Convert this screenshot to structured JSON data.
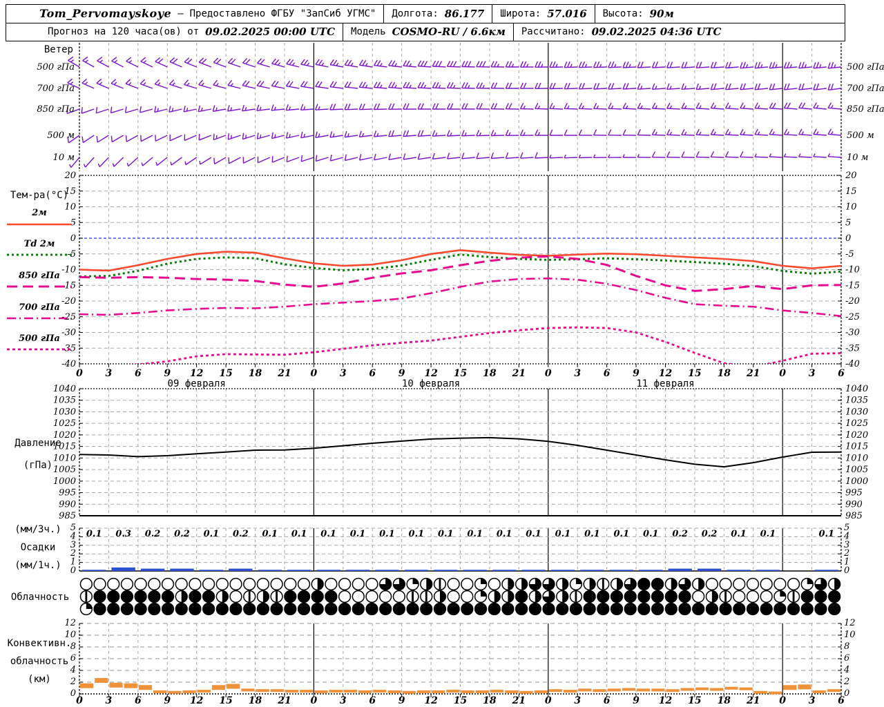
{
  "header": {
    "station": "Tom_Pervomayskoye",
    "dash": "–",
    "provider": "Предоставлено ФГБУ \"ЗапСиб УГМС\"",
    "lon_label": "Долгота:",
    "lon_value": "86.177",
    "lat_label": "Широта:",
    "lat_value": "57.016",
    "alt_label": "Высота:",
    "alt_value": "90м",
    "forecast_label": "Прогноз на 120 часа(ов) от",
    "forecast_time": "09.02.2025 00:00 UTC",
    "model_label": "Модель",
    "model_value": "COSMO-RU / 6.6км",
    "calc_label": "Рассчитано:",
    "calc_time": "09.02.2025 04:36 UTC"
  },
  "axis": {
    "hour_labels": [
      "0",
      "3",
      "6",
      "9",
      "12",
      "15",
      "18",
      "21",
      "0",
      "3",
      "6",
      "9",
      "12",
      "15",
      "18",
      "21",
      "0",
      "3",
      "6",
      "9",
      "12",
      "15",
      "18",
      "21",
      "0",
      "3",
      "6"
    ],
    "date_labels": [
      "09 февраля",
      "10 февраля",
      "11 февраля"
    ]
  },
  "colors": {
    "barb": "#7d10cc",
    "t2m": "#fb4a2e",
    "td2m": "#077c07",
    "magenta": "#e80a8e",
    "zero_line": "#2a2af0",
    "pressure": "#000000",
    "precip_bar": "#2d4fd2",
    "conv_bar": "#ef9239",
    "grid": "#a8a8a8"
  },
  "chart_data": [
    {
      "id": "wind",
      "type": "wind-barbs",
      "panel_label": "Ветер",
      "x_hours_step": 3,
      "levels": [
        {
          "name": "500 гПа",
          "dirs": [
            300,
            298,
            296,
            294,
            292,
            290,
            288,
            285,
            282,
            280,
            278,
            276,
            274,
            272,
            271,
            270,
            269,
            268,
            268,
            267,
            267,
            266,
            266,
            265,
            265,
            265,
            264
          ],
          "speeds": [
            18,
            18,
            18,
            20,
            20,
            22,
            22,
            25,
            25,
            25,
            28,
            28,
            30,
            30,
            30,
            28,
            28,
            25,
            25,
            25,
            22,
            22,
            22,
            25,
            25,
            25,
            25
          ]
        },
        {
          "name": "700 гПа",
          "dirs": [
            295,
            293,
            291,
            289,
            287,
            285,
            283,
            281,
            279,
            277,
            275,
            274,
            273,
            272,
            271,
            270,
            269,
            268,
            267,
            267,
            266,
            266,
            265,
            265,
            264,
            264,
            263
          ],
          "speeds": [
            15,
            15,
            15,
            18,
            18,
            18,
            20,
            20,
            22,
            22,
            25,
            25,
            25,
            25,
            25,
            22,
            22,
            20,
            20,
            20,
            18,
            18,
            20,
            20,
            22,
            22,
            22
          ]
        },
        {
          "name": "850 гПа",
          "dirs": [
            250,
            252,
            254,
            256,
            258,
            260,
            262,
            264,
            266,
            267,
            268,
            269,
            270,
            270,
            271,
            271,
            272,
            272,
            272,
            273,
            273,
            273,
            274,
            274,
            274,
            275,
            275
          ],
          "speeds": [
            12,
            12,
            12,
            15,
            15,
            15,
            18,
            18,
            18,
            20,
            20,
            22,
            22,
            22,
            20,
            20,
            18,
            18,
            15,
            15,
            15,
            18,
            18,
            18,
            20,
            20,
            18
          ]
        },
        {
          "name": "500 м",
          "dirs": [
            235,
            238,
            241,
            244,
            247,
            250,
            253,
            256,
            259,
            261,
            263,
            265,
            266,
            267,
            268,
            269,
            270,
            270,
            271,
            271,
            272,
            272,
            273,
            273,
            274,
            274,
            275
          ],
          "speeds": [
            10,
            10,
            12,
            12,
            12,
            15,
            15,
            15,
            18,
            18,
            18,
            20,
            20,
            18,
            18,
            15,
            15,
            12,
            12,
            12,
            15,
            15,
            15,
            15,
            15,
            15,
            15
          ]
        },
        {
          "name": "10 м",
          "dirs": [
            220,
            224,
            228,
            232,
            236,
            240,
            244,
            248,
            252,
            255,
            258,
            260,
            262,
            264,
            265,
            266,
            267,
            268,
            269,
            270,
            271,
            271,
            272,
            272,
            273,
            273,
            274
          ],
          "speeds": [
            5,
            5,
            8,
            8,
            8,
            10,
            10,
            10,
            10,
            12,
            12,
            12,
            12,
            12,
            10,
            10,
            10,
            8,
            8,
            8,
            10,
            10,
            10,
            10,
            8,
            8,
            8
          ]
        }
      ]
    },
    {
      "id": "temperature",
      "type": "line",
      "panel_label": "Тем-ра(°C)",
      "x_hours_step": 3,
      "ylim": [
        -40,
        20
      ],
      "ytick_step": 5,
      "zero_line": 0,
      "series": [
        {
          "name": "2м",
          "style": "solid",
          "color_key": "t2m",
          "values": [
            -10.0,
            -10.3,
            -8.6,
            -6.6,
            -5.0,
            -4.3,
            -4.6,
            -6.4,
            -8.0,
            -8.8,
            -8.4,
            -7.0,
            -5.0,
            -3.8,
            -4.6,
            -5.3,
            -5.6,
            -5.2,
            -4.9,
            -5.1,
            -5.6,
            -6.1,
            -6.6,
            -7.3,
            -8.8,
            -9.6,
            -8.8
          ]
        },
        {
          "name": "Td 2м",
          "style": "dotted",
          "color_key": "td2m",
          "values": [
            -12.2,
            -12.0,
            -10.4,
            -8.1,
            -6.6,
            -6.1,
            -6.4,
            -8.3,
            -9.5,
            -10.2,
            -9.8,
            -8.7,
            -6.9,
            -5.2,
            -6.0,
            -6.6,
            -6.9,
            -6.7,
            -6.4,
            -6.7,
            -7.1,
            -7.6,
            -8.1,
            -8.9,
            -10.4,
            -11.3,
            -10.6
          ]
        },
        {
          "name": "850 гПа",
          "style": "longdash",
          "color_key": "magenta",
          "values": [
            -12.4,
            -12.6,
            -12.4,
            -12.6,
            -13.0,
            -13.2,
            -13.6,
            -14.8,
            -15.5,
            -14.4,
            -12.6,
            -11.2,
            -10.2,
            -8.6,
            -7.2,
            -6.2,
            -5.8,
            -6.6,
            -8.5,
            -12.0,
            -15.0,
            -16.8,
            -16.2,
            -15.2,
            -16.2,
            -15.0,
            -14.9
          ]
        },
        {
          "name": "700 гПа",
          "style": "dashdot",
          "color_key": "magenta",
          "values": [
            -24.2,
            -24.4,
            -23.8,
            -23.0,
            -22.5,
            -22.2,
            -22.3,
            -21.8,
            -21.0,
            -20.5,
            -20.0,
            -19.2,
            -17.5,
            -15.5,
            -13.8,
            -13.0,
            -12.8,
            -13.2,
            -14.5,
            -16.5,
            -19.0,
            -21.0,
            -21.5,
            -21.8,
            -23.0,
            -23.8,
            -24.8
          ]
        },
        {
          "name": "500 гПа",
          "style": "shortdash",
          "color_key": "magenta",
          "values": [
            -41.0,
            -40.5,
            -40.2,
            -39.2,
            -37.6,
            -36.9,
            -37.0,
            -37.1,
            -36.3,
            -35.2,
            -34.1,
            -33.3,
            -32.6,
            -31.4,
            -30.2,
            -29.3,
            -28.6,
            -28.4,
            -28.6,
            -30.0,
            -33.0,
            -36.5,
            -39.8,
            -41.0,
            -39.0,
            -36.8,
            -36.6
          ]
        }
      ]
    },
    {
      "id": "pressure",
      "type": "line",
      "panel_labels": [
        "Давление",
        "(гПа)"
      ],
      "x_hours_step": 3,
      "ylim": [
        985,
        1040
      ],
      "ytick_step": 5,
      "values": [
        1011.5,
        1011.3,
        1010.6,
        1011.0,
        1011.8,
        1012.6,
        1013.4,
        1013.5,
        1014.2,
        1015.3,
        1016.4,
        1017.3,
        1018.2,
        1018.6,
        1018.8,
        1018.3,
        1017.2,
        1015.5,
        1013.4,
        1011.3,
        1009.2,
        1007.3,
        1006.2,
        1008.0,
        1010.4,
        1012.5,
        1012.6
      ]
    },
    {
      "id": "precipitation",
      "type": "bar",
      "panel_labels": [
        "(мм/3ч.)",
        "Осадки",
        "(мм/1ч.)"
      ],
      "ylim": [
        0,
        5
      ],
      "ytick_step": 1,
      "amounts_3h": [
        "0.1",
        "0.3",
        "0.2",
        "0.2",
        "0.1",
        "0.2",
        "0.1",
        "0.1",
        "0.1",
        "0.1",
        "0.1",
        "0.1",
        "0.1",
        "0.1",
        "0.1",
        "0.1",
        "0.1",
        "0.1",
        "0.1",
        "0.1",
        "0.2",
        "0.2",
        "0.1",
        "0.1",
        "",
        "0.1"
      ],
      "bar_values": [
        0.1,
        0.3,
        0.2,
        0.2,
        0.1,
        0.2,
        0.1,
        0.1,
        0.1,
        0.1,
        0.1,
        0.1,
        0.1,
        0.1,
        0.1,
        0.1,
        0.1,
        0.1,
        0.1,
        0.1,
        0.2,
        0.2,
        0.1,
        0.1,
        0,
        0.1
      ]
    },
    {
      "id": "cloudiness",
      "type": "symbols",
      "panel_label": "Облачность",
      "symbol_legend": "0=clear 1=sliver 2=quarter 4=half 6=three-quarter 8=overcast",
      "rows": [
        {
          "name": "high",
          "symbols": "00000000000000000400006624100234466424146884640000000264"
        },
        {
          "name": "middle",
          "symbols": "18888884884014188880000011400244846418888888804100021888"
        },
        {
          "name": "low",
          "symbols": "28888888888888888888888888888888888888888888888888888888"
        }
      ]
    },
    {
      "id": "convective",
      "type": "bar",
      "panel_labels": [
        "Конвективн.",
        "облачность",
        "(км)"
      ],
      "ylim": [
        0,
        12
      ],
      "ytick_step": 2,
      "segment_hours": 1.5,
      "values": [
        1.8,
        2.7,
        1.9,
        1.8,
        1.5,
        0.6,
        0.5,
        0.6,
        0.7,
        1.5,
        1.7,
        0.9,
        0.8,
        0.8,
        0.7,
        0.7,
        0.6,
        0.7,
        0.7,
        0.6,
        0.7,
        0.6,
        0.5,
        0.6,
        0.6,
        0.7,
        0.6,
        0.6,
        0.7,
        0.6,
        0.5,
        0.6,
        0.8,
        0.7,
        0.9,
        0.8,
        0.9,
        1.0,
        0.9,
        0.9,
        0.8,
        1.0,
        1.1,
        1.0,
        1.2,
        1.1,
        0.5,
        0.4,
        1.5,
        1.6,
        0.6,
        0.8
      ]
    }
  ]
}
